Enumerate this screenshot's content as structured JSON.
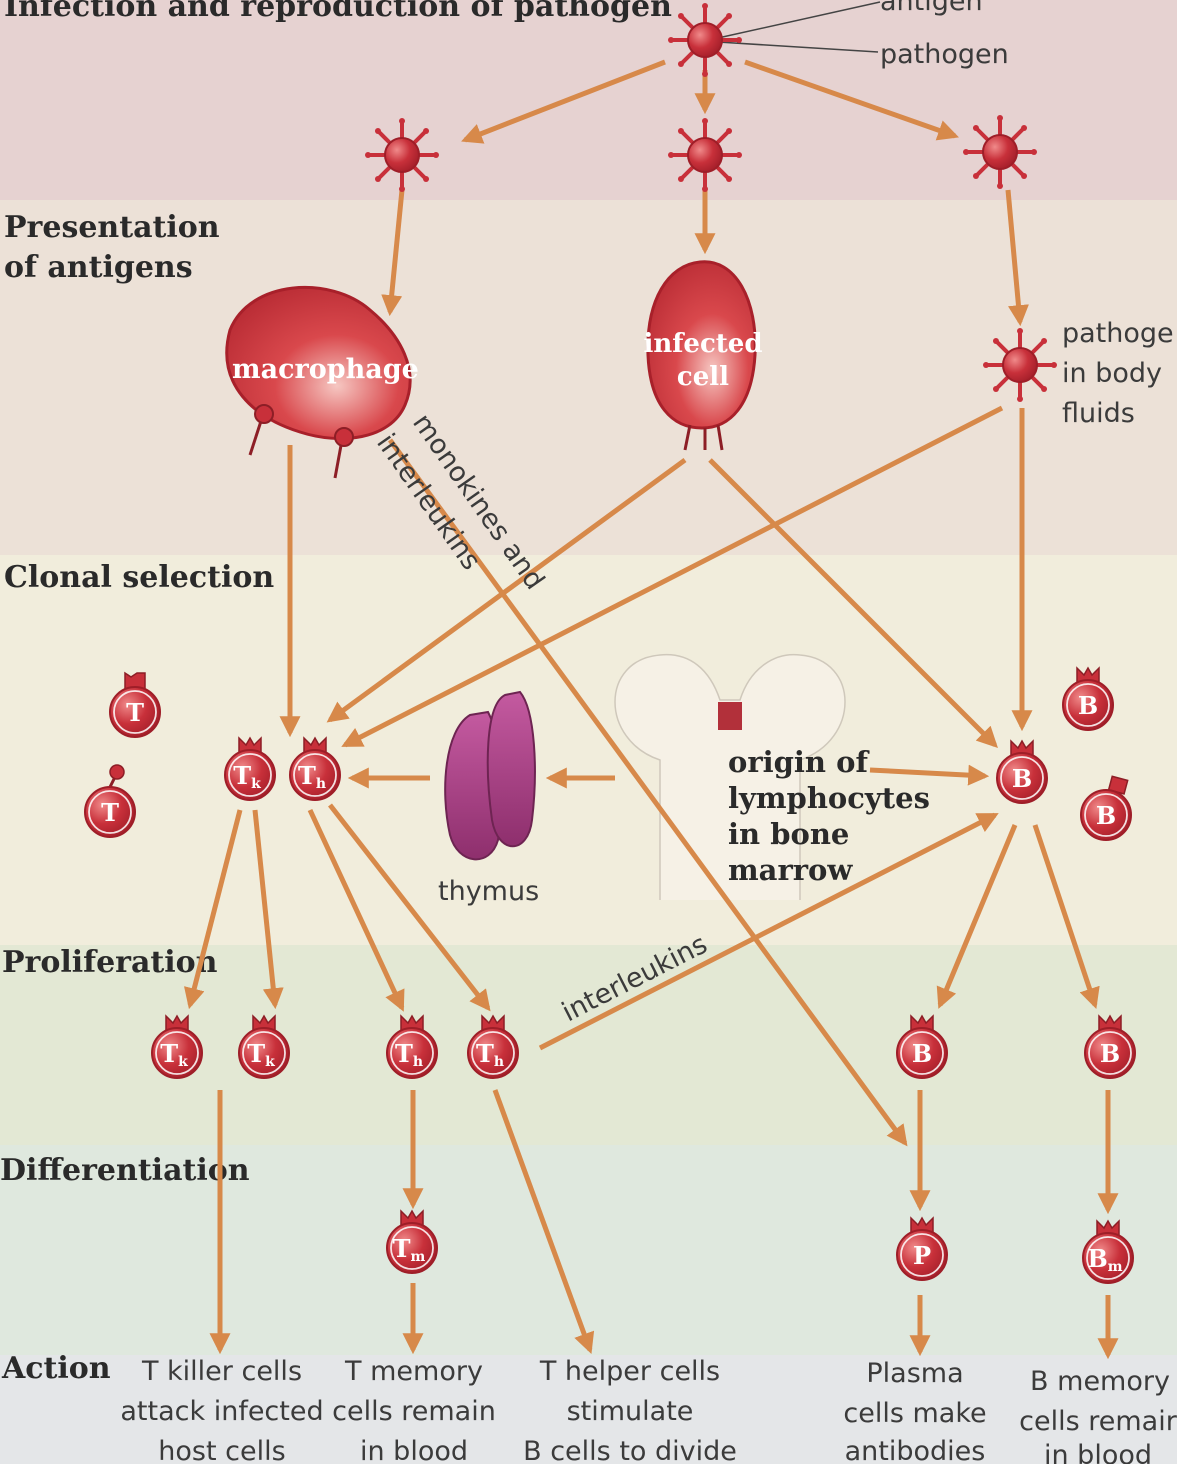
{
  "bands": {
    "infection": "Infection and reproduction of pathogen",
    "presentation_line1": "Presentation",
    "presentation_line2": "of antigens",
    "clonal": "Clonal selection",
    "proliferation": "Proliferation",
    "differentiation": "Differentiation",
    "action": "Action"
  },
  "labels": {
    "antigen": "antigen",
    "pathogen": "pathogen",
    "macrophage": "macrophage",
    "infected_line1": "infected",
    "infected_line2": "cell",
    "body_fluids_line1": "pathoge",
    "body_fluids_line2": "in body",
    "body_fluids_line3": "fluids",
    "monokines": "monokines and",
    "interleukins_diag": "interleukins",
    "thymus": "thymus",
    "origin_line1": "origin of",
    "origin_line2": "lymphocytes",
    "origin_line3": "in bone",
    "origin_line4": "marrow",
    "interleukins_th": "interleukins"
  },
  "cells": {
    "t": "T",
    "b": "B",
    "p": "P",
    "tk_main": "T",
    "tk_sub": "k",
    "th_main": "T",
    "th_sub": "h",
    "tm_main": "T",
    "tm_sub": "m",
    "bm_main": "B",
    "bm_sub": "m"
  },
  "actions": {
    "killer": [
      "T killer cells",
      "attack infected",
      "host cells"
    ],
    "memory_t": [
      "T memory",
      "cells remain",
      "in blood"
    ],
    "helper": [
      "T helper cells",
      "stimulate",
      "B cells to divide"
    ],
    "plasma": [
      "Plasma",
      "cells make",
      "antibodies"
    ],
    "memory_b": [
      "B memory",
      "cells remair",
      "in blood"
    ]
  },
  "colors": {
    "cell_red": "#c8303a",
    "arrow": "#d7894a",
    "band_top": "#e8d5d3",
    "band_mid": "#ede3d6",
    "band_clonal": "#f0eddc",
    "band_prolif": "#e3e9d6",
    "band_diff": "#dfe8df",
    "band_action": "#dde3e6",
    "thymus": "#a13d7a"
  }
}
